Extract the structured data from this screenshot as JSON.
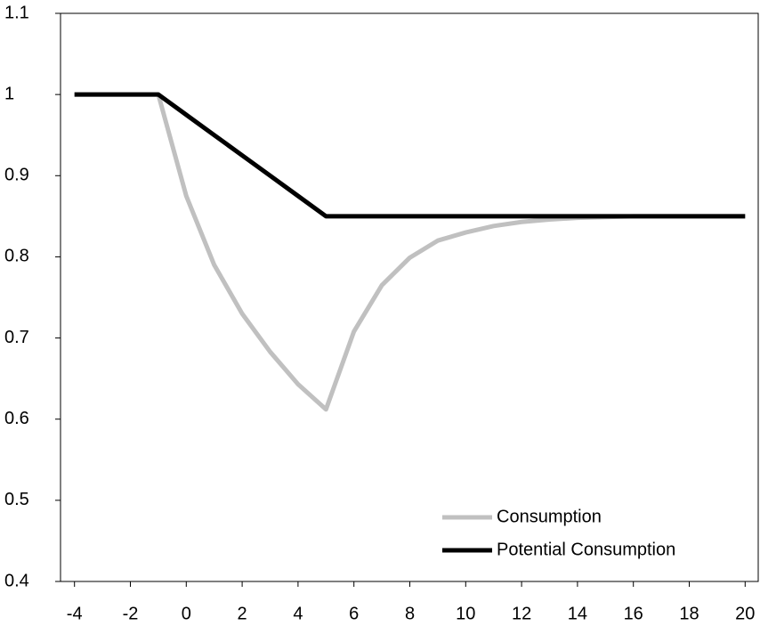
{
  "chart_data": {
    "type": "line",
    "x": [
      -4,
      -3,
      -2,
      -1,
      0,
      1,
      2,
      3,
      4,
      5,
      6,
      7,
      8,
      9,
      10,
      11,
      12,
      13,
      14,
      15,
      16,
      17,
      18,
      19,
      20
    ],
    "series": [
      {
        "name": "Consumption",
        "color": "#c0c0c0",
        "values": [
          1,
          1,
          1,
          1,
          0.875,
          0.79,
          0.73,
          0.683,
          0.643,
          0.612,
          0.708,
          0.765,
          0.799,
          0.82,
          0.83,
          0.838,
          0.843,
          0.846,
          0.848,
          0.849,
          0.85,
          0.85,
          0.85,
          0.85,
          0.85
        ]
      },
      {
        "name": "Potential Consumption",
        "color": "#000000",
        "values": [
          1,
          1,
          1,
          1,
          0.975,
          0.95,
          0.925,
          0.9,
          0.875,
          0.85,
          0.85,
          0.85,
          0.85,
          0.85,
          0.85,
          0.85,
          0.85,
          0.85,
          0.85,
          0.85,
          0.85,
          0.85,
          0.85,
          0.85,
          0.85
        ]
      }
    ],
    "xlim": [
      -4.5,
      20.5
    ],
    "xticks": [
      -4,
      -2,
      0,
      2,
      4,
      6,
      8,
      10,
      12,
      14,
      16,
      18,
      20
    ],
    "ylim": [
      0.4,
      1.1
    ],
    "yticks": [
      0.4,
      0.5,
      0.6,
      0.7,
      0.8,
      0.9,
      1,
      1.1
    ],
    "legend": "lower right"
  }
}
